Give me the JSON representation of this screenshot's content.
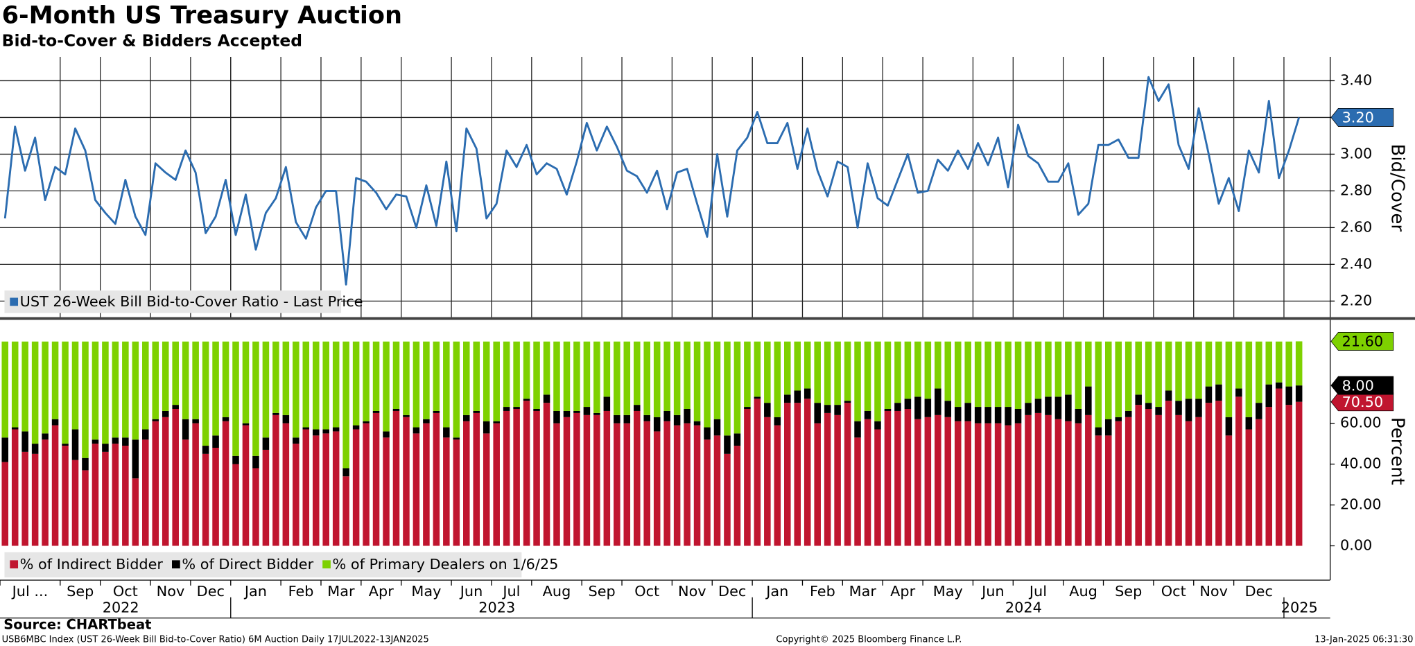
{
  "chart_data": [
    {
      "type": "line",
      "title": "6-Month US Treasury Auction",
      "subtitle": "Bid-to-Cover & Bidders Accepted",
      "y_label": "Bid/Cover",
      "ylim": [
        2.11,
        3.53
      ],
      "yticks": [
        {
          "value": 2.2,
          "label": "2.20"
        },
        {
          "value": 2.4,
          "label": "2.40"
        },
        {
          "value": 2.6,
          "label": "2.60"
        },
        {
          "value": 2.8,
          "label": "2.80"
        },
        {
          "value": 3.0,
          "label": "3.00"
        },
        {
          "value": 3.2,
          "label": "3.20"
        },
        {
          "value": 3.4,
          "label": "3.40"
        }
      ],
      "grid": true,
      "series": [
        {
          "name": "UST 26-Week Bill Bid-to-Cover Ratio - Last Price",
          "color": "#2b6cb0",
          "last_label": "3.20",
          "values": [
            2.65,
            3.15,
            2.91,
            3.09,
            2.75,
            2.93,
            2.89,
            3.14,
            3.02,
            2.75,
            2.68,
            2.62,
            2.86,
            2.66,
            2.56,
            2.95,
            2.9,
            2.86,
            3.02,
            2.9,
            2.57,
            2.66,
            2.86,
            2.56,
            2.78,
            2.48,
            2.68,
            2.76,
            2.93,
            2.63,
            2.54,
            2.71,
            2.8,
            2.8,
            2.29,
            2.87,
            2.85,
            2.79,
            2.7,
            2.78,
            2.77,
            2.6,
            2.83,
            2.61,
            2.96,
            2.58,
            3.14,
            3.03,
            2.65,
            2.73,
            3.02,
            2.93,
            3.05,
            2.89,
            2.95,
            2.92,
            2.78,
            2.96,
            3.17,
            3.02,
            3.15,
            3.04,
            2.91,
            2.88,
            2.79,
            2.91,
            2.7,
            2.9,
            2.92,
            2.73,
            2.55,
            3.0,
            2.66,
            3.02,
            3.09,
            3.23,
            3.06,
            3.06,
            3.17,
            2.92,
            3.14,
            2.91,
            2.77,
            2.96,
            2.93,
            2.6,
            2.95,
            2.76,
            2.72,
            2.86,
            3.0,
            2.79,
            2.8,
            2.97,
            2.91,
            3.02,
            2.92,
            3.06,
            2.94,
            3.09,
            2.82,
            3.16,
            2.99,
            2.95,
            2.85,
            2.85,
            2.95,
            2.67,
            2.73,
            3.05,
            3.05,
            3.08,
            2.98,
            2.98,
            3.42,
            3.29,
            3.38,
            3.05,
            2.92,
            3.25,
            3.0,
            2.73,
            2.87,
            2.69,
            3.02,
            2.9,
            3.29,
            2.87,
            3.02,
            3.2
          ]
        }
      ]
    },
    {
      "type": "bar",
      "stacked": true,
      "y_label": "Percent",
      "ylim": [
        -16.8,
        110.4
      ],
      "yticks": [
        {
          "value": 0,
          "label": "0.00"
        },
        {
          "value": 20,
          "label": "20.00"
        },
        {
          "value": 40,
          "label": "40.00"
        },
        {
          "value": 60,
          "label": "60.00"
        }
      ],
      "categories": [
        "Jul ...",
        null,
        null,
        null,
        null,
        null,
        "Sep",
        null,
        null,
        null,
        "Oct",
        null,
        null,
        null,
        null,
        "Nov",
        null,
        null,
        null,
        "Dec",
        null,
        null,
        null,
        "Jan",
        null,
        null,
        null,
        null,
        "Feb",
        null,
        null,
        null,
        "Mar",
        null,
        null,
        null,
        "Apr",
        null,
        null,
        null,
        "May",
        null,
        null,
        null,
        null,
        "Jun",
        null,
        null,
        null,
        "Jul",
        null,
        null,
        null,
        "Aug",
        null,
        null,
        null,
        null,
        "Sep",
        null,
        null,
        null,
        "Oct",
        null,
        null,
        null,
        null,
        "Nov",
        null,
        null,
        null,
        "Dec",
        null,
        null,
        null,
        "Jan",
        null,
        null,
        null,
        null,
        "Feb",
        null,
        null,
        null,
        "Mar",
        null,
        null,
        null,
        "Apr",
        null,
        null,
        null,
        "May",
        null,
        null,
        null,
        null,
        "Jun",
        null,
        null,
        null,
        "Jul",
        null,
        null,
        null,
        null,
        "Aug",
        null,
        null,
        null,
        "Sep",
        null,
        null,
        null,
        null,
        "Oct",
        null,
        null,
        null,
        "Nov",
        null,
        null,
        null,
        "Dec",
        null,
        null,
        null,
        null,
        null,
        null
      ],
      "years": [
        "2022",
        null,
        null,
        null,
        null,
        null,
        null,
        null,
        null,
        null,
        null,
        null,
        null,
        null,
        null,
        null,
        null,
        null,
        null,
        null,
        null,
        null,
        null,
        "2023",
        null,
        null,
        null,
        null,
        null,
        null,
        null,
        null,
        null,
        null,
        null,
        null,
        null,
        null,
        null,
        null,
        null,
        null,
        null,
        null,
        null,
        null,
        null,
        null,
        null,
        null,
        null,
        null,
        null,
        null,
        null,
        null,
        null,
        null,
        null,
        null,
        null,
        null,
        null,
        null,
        null,
        null,
        null,
        null,
        null,
        null,
        null,
        null,
        null,
        null,
        null,
        "2024",
        null,
        null,
        null,
        null,
        null,
        null,
        null,
        null,
        null,
        null,
        null,
        null,
        null,
        null,
        null,
        null,
        null,
        null,
        null,
        null,
        null,
        null,
        null,
        null,
        null,
        null,
        null,
        null,
        null,
        null,
        null,
        null,
        null,
        null,
        null,
        null,
        null,
        null,
        null,
        null,
        null,
        null,
        null,
        null,
        null,
        null,
        null,
        null,
        null,
        null,
        null,
        null,
        "2025",
        null
      ],
      "series": [
        {
          "name": "% of Indirect Bidder",
          "color": "#c0152f",
          "last_label": "70.50",
          "values": [
            41,
            57,
            46,
            45,
            52,
            59,
            49,
            42,
            37,
            50,
            46,
            50,
            49,
            33,
            52,
            61,
            63,
            67,
            52,
            60,
            45,
            48,
            61,
            40,
            59,
            38,
            47,
            64,
            60,
            50,
            57,
            54,
            55,
            56,
            34,
            57,
            60,
            65,
            53,
            66,
            63,
            55,
            60,
            65,
            53,
            52,
            61,
            65,
            55,
            60,
            66,
            67,
            71,
            66,
            70,
            60,
            63,
            65,
            64,
            64,
            66,
            60,
            60,
            66,
            61,
            56,
            61,
            59,
            60,
            59,
            52,
            54,
            45,
            49,
            67,
            72,
            63,
            59,
            70,
            70,
            72,
            60,
            65,
            64,
            70,
            53,
            62,
            57,
            66,
            66,
            67,
            62,
            63,
            64,
            63,
            61,
            61,
            60,
            60,
            60,
            59,
            60,
            64,
            65,
            64,
            62,
            61,
            60,
            64,
            54,
            54,
            61,
            63,
            69,
            67,
            64,
            71,
            64,
            61,
            63,
            70,
            71,
            54,
            73,
            57,
            62,
            68,
            77,
            69,
            70.5
          ]
        },
        {
          "name": "% of Direct Bidder",
          "color": "#000000",
          "last_label": "8.00",
          "values": [
            12,
            1,
            10,
            5,
            3,
            3,
            1,
            15,
            6,
            2,
            4,
            3,
            4,
            19,
            5,
            1,
            3,
            2,
            10,
            2,
            4,
            6,
            2,
            4,
            1,
            6,
            6,
            1,
            4,
            3,
            1,
            3,
            2,
            2,
            4,
            2,
            1,
            1,
            3,
            1,
            1,
            3,
            2,
            1,
            5,
            1,
            3,
            1,
            6,
            1,
            2,
            1,
            1,
            1,
            4,
            6,
            3,
            1,
            4,
            1,
            7,
            4,
            4,
            3,
            3,
            7,
            5,
            5,
            7,
            2,
            6,
            8,
            9,
            6,
            1,
            1,
            7,
            4,
            4,
            6,
            5,
            10,
            4,
            5,
            1,
            8,
            4,
            4,
            1,
            4,
            5,
            11,
            9,
            13,
            8,
            7,
            9,
            8,
            8,
            8,
            9,
            7,
            6,
            7,
            9,
            11,
            13,
            7,
            14,
            4,
            8,
            2,
            3,
            5,
            3,
            4,
            5,
            7,
            11,
            9,
            8,
            8,
            9,
            4,
            6,
            8,
            11,
            3,
            9,
            8
          ]
        },
        {
          "name": "% of Primary Dealers on 1/6/25",
          "color": "#7ed100",
          "last_label": "21.60",
          "values": [
            47,
            42,
            44,
            50,
            45,
            38,
            50,
            43,
            57,
            48,
            50,
            47,
            47,
            48,
            43,
            38,
            34,
            31,
            38,
            38,
            51,
            46,
            37,
            56,
            40,
            56,
            47,
            35,
            36,
            47,
            42,
            43,
            43,
            42,
            62,
            41,
            39,
            34,
            44,
            33,
            36,
            42,
            38,
            34,
            42,
            47,
            36,
            34,
            39,
            39,
            32,
            32,
            28,
            33,
            26,
            34,
            34,
            34,
            32,
            35,
            27,
            36,
            36,
            31,
            36,
            37,
            34,
            36,
            33,
            39,
            42,
            38,
            46,
            45,
            32,
            27,
            30,
            37,
            26,
            24,
            23,
            30,
            31,
            31,
            29,
            39,
            34,
            39,
            33,
            30,
            28,
            27,
            28,
            23,
            29,
            32,
            30,
            32,
            32,
            32,
            32,
            33,
            30,
            28,
            27,
            27,
            26,
            33,
            22,
            42,
            38,
            37,
            34,
            26,
            30,
            32,
            24,
            29,
            28,
            28,
            22,
            21,
            37,
            23,
            37,
            30,
            21,
            20,
            22,
            21.6
          ]
        }
      ]
    }
  ],
  "footer": {
    "source": "Source: CHARTbeat",
    "ticker": "USB6MBC Index (UST 26-Week Bill Bid-to-Cover Ratio) 6M Auction  Daily 17JUL2022-13JAN2025",
    "copyright": "Copyright© 2025 Bloomberg Finance L.P.",
    "timestamp": "13-Jan-2025 06:31:30"
  }
}
